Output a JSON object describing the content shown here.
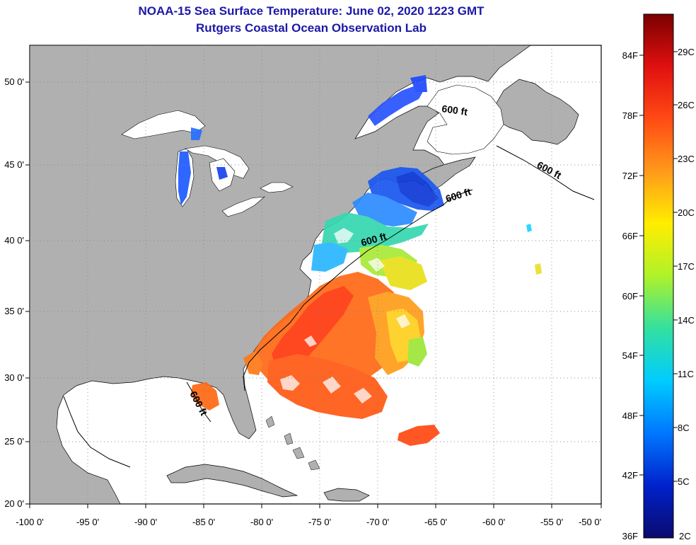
{
  "header": {
    "title": "NOAA-15 Sea Surface Temperature:  June 02, 2020 1223 GMT",
    "subtitle": "Rutgers Coastal Ocean Observation Lab"
  },
  "map": {
    "lon_ticks": [
      "-100 0'",
      "-95 0'",
      "-90 0'",
      "-85 0'",
      "-80 0'",
      "-75 0'",
      "-70 0'",
      "-65 0'",
      "-60 0'",
      "-55 0'",
      "-50 0'"
    ],
    "lat_ticks": [
      "20 0'",
      "25 0'",
      "30 0'",
      "35 0'",
      "40 0'",
      "45 0'",
      "50 0'"
    ],
    "contour_labels": [
      "600 ft",
      "600 ft",
      "600 ft",
      "600 ft",
      "600 ft"
    ],
    "colors": {
      "land": "#b0b0b0",
      "ocean": "#ffffff",
      "grid": "#8a8a8a"
    }
  },
  "colorbar": {
    "fahrenheit_labels": [
      "84F",
      "78F",
      "72F",
      "66F",
      "60F",
      "54F",
      "48F",
      "42F",
      "36F"
    ],
    "celsius_labels": [
      "29C",
      "26C",
      "23C",
      "20C",
      "17C",
      "14C",
      "11C",
      "8C",
      "5C",
      "2C"
    ],
    "scale_colors": [
      "#0a0a6e",
      "#0022cc",
      "#0077ff",
      "#00ccff",
      "#33e0a0",
      "#aef22a",
      "#ffee00",
      "#ff9a1a",
      "#ff4a14",
      "#e01010",
      "#7a0000"
    ]
  }
}
